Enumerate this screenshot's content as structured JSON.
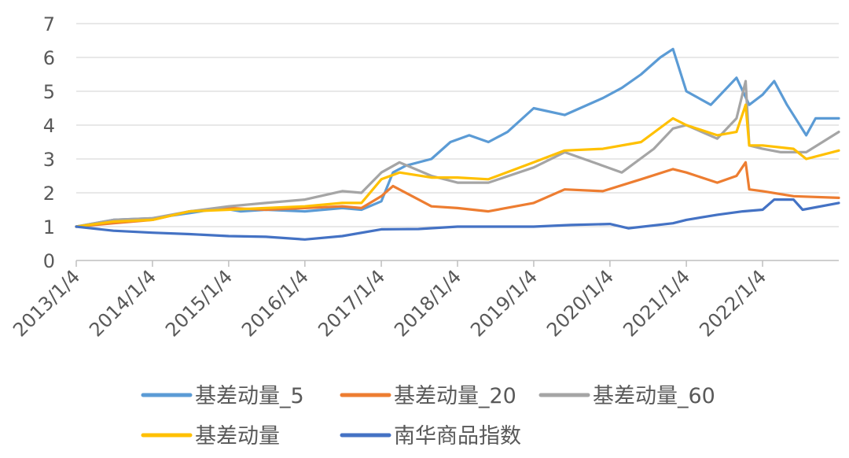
{
  "chart_data": {
    "type": "line",
    "title": "",
    "xlabel": "",
    "ylabel": "",
    "ylim": [
      0,
      7
    ],
    "yticks": [
      0,
      1,
      2,
      3,
      4,
      5,
      6,
      7
    ],
    "xlim": [
      "2013/1/4",
      "2023/1/4"
    ],
    "xticks": [
      "2013/1/4",
      "2014/1/4",
      "2015/1/4",
      "2016/1/4",
      "2017/1/4",
      "2018/1/4",
      "2019/1/4",
      "2020/1/4",
      "2021/1/4",
      "2022/1/4"
    ],
    "grid": "horizontal",
    "legend_position": "bottom",
    "series": [
      {
        "name": "基差动量_5",
        "color": "#5B9BD5",
        "points": [
          [
            "2013/1/4",
            1.0
          ],
          [
            "2013/7/1",
            1.2
          ],
          [
            "2014/1/4",
            1.25
          ],
          [
            "2014/7/1",
            1.4
          ],
          [
            "2014/12/1",
            1.55
          ],
          [
            "2015/3/1",
            1.45
          ],
          [
            "2015/7/1",
            1.5
          ],
          [
            "2016/1/4",
            1.45
          ],
          [
            "2016/7/1",
            1.55
          ],
          [
            "2016/10/1",
            1.5
          ],
          [
            "2017/1/4",
            1.75
          ],
          [
            "2017/3/1",
            2.6
          ],
          [
            "2017/5/1",
            2.8
          ],
          [
            "2017/9/1",
            3.0
          ],
          [
            "2017/12/1",
            3.5
          ],
          [
            "2018/3/1",
            3.7
          ],
          [
            "2018/6/1",
            3.5
          ],
          [
            "2018/9/1",
            3.8
          ],
          [
            "2019/1/4",
            4.5
          ],
          [
            "2019/6/1",
            4.3
          ],
          [
            "2019/12/1",
            4.8
          ],
          [
            "2020/3/1",
            5.1
          ],
          [
            "2020/6/1",
            5.5
          ],
          [
            "2020/9/1",
            6.0
          ],
          [
            "2020/11/1",
            6.25
          ],
          [
            "2021/1/4",
            5.0
          ],
          [
            "2021/5/1",
            4.6
          ],
          [
            "2021/9/1",
            5.4
          ],
          [
            "2021/11/1",
            4.6
          ],
          [
            "2022/1/4",
            4.9
          ],
          [
            "2022/3/1",
            5.3
          ],
          [
            "2022/5/1",
            4.6
          ],
          [
            "2022/8/1",
            3.7
          ],
          [
            "2022/9/15",
            4.2
          ],
          [
            "2023/1/4",
            4.2
          ]
        ]
      },
      {
        "name": "基差动量_20",
        "color": "#ED7D31",
        "points": [
          [
            "2013/1/4",
            1.0
          ],
          [
            "2013/7/1",
            1.1
          ],
          [
            "2014/1/4",
            1.2
          ],
          [
            "2014/7/1",
            1.45
          ],
          [
            "2015/1/4",
            1.55
          ],
          [
            "2015/7/1",
            1.5
          ],
          [
            "2016/1/4",
            1.55
          ],
          [
            "2016/7/1",
            1.6
          ],
          [
            "2016/10/1",
            1.55
          ],
          [
            "2017/1/4",
            1.9
          ],
          [
            "2017/3/1",
            2.2
          ],
          [
            "2017/6/1",
            1.9
          ],
          [
            "2017/9/1",
            1.6
          ],
          [
            "2018/1/4",
            1.55
          ],
          [
            "2018/6/1",
            1.45
          ],
          [
            "2019/1/4",
            1.7
          ],
          [
            "2019/6/1",
            2.1
          ],
          [
            "2019/12/1",
            2.05
          ],
          [
            "2020/6/1",
            2.4
          ],
          [
            "2020/11/1",
            2.7
          ],
          [
            "2021/1/4",
            2.6
          ],
          [
            "2021/6/1",
            2.3
          ],
          [
            "2021/9/1",
            2.5
          ],
          [
            "2021/10/15",
            2.9
          ],
          [
            "2021/11/1",
            2.1
          ],
          [
            "2022/1/4",
            2.05
          ],
          [
            "2022/6/1",
            1.9
          ],
          [
            "2023/1/4",
            1.85
          ]
        ]
      },
      {
        "name": "基差动量_60",
        "color": "#A5A5A5",
        "points": [
          [
            "2013/1/4",
            1.0
          ],
          [
            "2013/7/1",
            1.2
          ],
          [
            "2014/1/4",
            1.25
          ],
          [
            "2014/7/1",
            1.45
          ],
          [
            "2015/1/4",
            1.6
          ],
          [
            "2015/7/1",
            1.7
          ],
          [
            "2016/1/4",
            1.8
          ],
          [
            "2016/7/1",
            2.05
          ],
          [
            "2016/10/1",
            2.0
          ],
          [
            "2017/1/4",
            2.6
          ],
          [
            "2017/4/1",
            2.9
          ],
          [
            "2017/9/1",
            2.5
          ],
          [
            "2018/1/4",
            2.3
          ],
          [
            "2018/6/1",
            2.3
          ],
          [
            "2019/1/4",
            2.75
          ],
          [
            "2019/6/1",
            3.2
          ],
          [
            "2019/12/1",
            2.8
          ],
          [
            "2020/3/1",
            2.6
          ],
          [
            "2020/8/1",
            3.3
          ],
          [
            "2020/11/1",
            3.9
          ],
          [
            "2021/1/4",
            4.0
          ],
          [
            "2021/6/1",
            3.6
          ],
          [
            "2021/9/1",
            4.2
          ],
          [
            "2021/10/15",
            5.3
          ],
          [
            "2021/11/1",
            3.4
          ],
          [
            "2022/1/4",
            3.3
          ],
          [
            "2022/4/1",
            3.2
          ],
          [
            "2022/8/1",
            3.2
          ],
          [
            "2023/1/4",
            3.8
          ]
        ]
      },
      {
        "name": "基差动量",
        "color": "#FFC000",
        "points": [
          [
            "2013/1/4",
            1.0
          ],
          [
            "2013/7/1",
            1.15
          ],
          [
            "2014/1/4",
            1.2
          ],
          [
            "2014/7/1",
            1.45
          ],
          [
            "2015/1/4",
            1.5
          ],
          [
            "2015/7/1",
            1.55
          ],
          [
            "2016/1/4",
            1.6
          ],
          [
            "2016/7/1",
            1.7
          ],
          [
            "2016/10/1",
            1.7
          ],
          [
            "2017/1/4",
            2.4
          ],
          [
            "2017/4/1",
            2.6
          ],
          [
            "2017/9/1",
            2.45
          ],
          [
            "2018/1/4",
            2.45
          ],
          [
            "2018/6/1",
            2.4
          ],
          [
            "2019/1/4",
            2.9
          ],
          [
            "2019/6/1",
            3.25
          ],
          [
            "2019/12/1",
            3.3
          ],
          [
            "2020/6/1",
            3.5
          ],
          [
            "2020/11/1",
            4.2
          ],
          [
            "2021/1/4",
            4.0
          ],
          [
            "2021/6/1",
            3.7
          ],
          [
            "2021/9/1",
            3.8
          ],
          [
            "2021/10/15",
            4.6
          ],
          [
            "2021/11/1",
            3.4
          ],
          [
            "2022/1/4",
            3.4
          ],
          [
            "2022/6/1",
            3.3
          ],
          [
            "2022/8/1",
            3.0
          ],
          [
            "2023/1/4",
            3.25
          ]
        ]
      },
      {
        "name": "南华商品指数",
        "color": "#4472C4",
        "points": [
          [
            "2013/1/4",
            1.0
          ],
          [
            "2013/7/1",
            0.88
          ],
          [
            "2014/1/4",
            0.82
          ],
          [
            "2014/7/1",
            0.78
          ],
          [
            "2015/1/4",
            0.72
          ],
          [
            "2015/7/1",
            0.7
          ],
          [
            "2016/1/4",
            0.62
          ],
          [
            "2016/7/1",
            0.72
          ],
          [
            "2017/1/4",
            0.92
          ],
          [
            "2017/7/1",
            0.93
          ],
          [
            "2018/1/4",
            1.0
          ],
          [
            "2018/7/1",
            1.0
          ],
          [
            "2019/1/4",
            1.0
          ],
          [
            "2019/7/1",
            1.05
          ],
          [
            "2020/1/4",
            1.08
          ],
          [
            "2020/4/1",
            0.95
          ],
          [
            "2020/11/1",
            1.1
          ],
          [
            "2021/1/4",
            1.2
          ],
          [
            "2021/6/1",
            1.35
          ],
          [
            "2021/10/1",
            1.45
          ],
          [
            "2022/1/4",
            1.5
          ],
          [
            "2022/3/1",
            1.8
          ],
          [
            "2022/6/1",
            1.8
          ],
          [
            "2022/7/15",
            1.5
          ],
          [
            "2023/1/4",
            1.7
          ]
        ]
      }
    ]
  }
}
